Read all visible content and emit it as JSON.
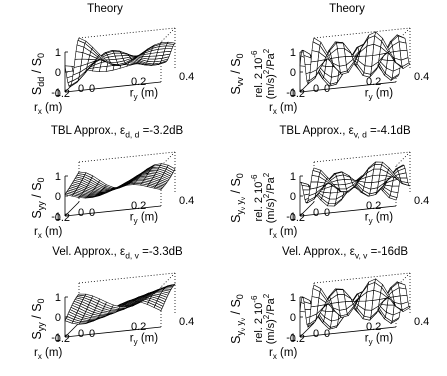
{
  "chart_data": [
    {
      "type": "surface",
      "title": "Theory",
      "zlabel": "S_dd / S_0",
      "xlabel": "r_x (m)",
      "ylabel": "r_y (m)",
      "zlim": [
        -1,
        1
      ],
      "zticks": [
        "1",
        "0",
        "-1"
      ],
      "xticks": [
        "0.2",
        "0"
      ],
      "yticks": [
        "0",
        "0.2",
        "0.4"
      ],
      "surface": "dd"
    },
    {
      "type": "surface",
      "title": "Theory",
      "zlabel": "S_vv / S_0",
      "zlabel2": "rel. 2 10^-6 (m/s)^2/Pa^2",
      "xlabel": "r_x (m)",
      "ylabel": "r_y (m)",
      "zlim": [
        -1,
        1
      ],
      "zticks": [
        "1",
        "0",
        "-1"
      ],
      "xticks": [
        "0.2",
        "0"
      ],
      "yticks": [
        "0",
        "0.2",
        "0.4"
      ],
      "surface": "vv"
    },
    {
      "type": "surface",
      "title": "TBL Approx., ε_d,d =-3.2dB",
      "zlabel": "S_yy / S_0",
      "xlabel": "r_x (m)",
      "ylabel": "r_y (m)",
      "zlim": [
        -1,
        1
      ],
      "zticks": [
        "1",
        "0",
        "-1"
      ],
      "xticks": [
        "0.2",
        "0"
      ],
      "yticks": [
        "0",
        "0.2",
        "0.4"
      ],
      "surface": "tbl_d"
    },
    {
      "type": "surface",
      "title": "TBL Approx., ε_v,d =-4.1dB",
      "zlabel": "S_yv yv / S_0",
      "zlabel2": "rel. 2 10^-6 (m/s)^2/Pa^2",
      "xlabel": "r_x (m)",
      "ylabel": "r_y (m)",
      "zlim": [
        -1,
        1
      ],
      "zticks": [
        "1",
        "0",
        "-1"
      ],
      "xticks": [
        "0.2",
        "0"
      ],
      "yticks": [
        "0",
        "0.2",
        "0.4"
      ],
      "surface": "tbl_v"
    },
    {
      "type": "surface",
      "title": "Vel. Approx., ε_d,v =-3.3dB",
      "zlabel": "S_yy / S_0",
      "xlabel": "r_x (m)",
      "ylabel": "r_y (m)",
      "zlim": [
        -1,
        1
      ],
      "zticks": [
        "1",
        "0",
        "-1"
      ],
      "xticks": [
        "0.2",
        "0"
      ],
      "yticks": [
        "0",
        "0.2",
        "0.4"
      ],
      "surface": "vel_d"
    },
    {
      "type": "surface",
      "title": "Vel. Approx., ε_v,v =-16dB",
      "zlabel": "S_yv yv / S_0",
      "zlabel2": "rel. 2 10^-6 (m/s)^2/Pa^2",
      "xlabel": "r_x (m)",
      "ylabel": "r_y (m)",
      "zlim": [
        -1,
        1
      ],
      "zticks": [
        "1",
        "0",
        "-1"
      ],
      "xticks": [
        "0.2",
        "0"
      ],
      "yticks": [
        "0",
        "0.2",
        "0.4"
      ],
      "surface": "vel_v"
    }
  ],
  "titles": {
    "t1": "Theory",
    "t2": "Theory",
    "t3_pre": "TBL Approx., ε",
    "t3_sub": "d, d",
    "t3_post": " =-3.2dB",
    "t4_pre": "TBL Approx., ε",
    "t4_sub": "v, d",
    "t4_post": " =-4.1dB",
    "t5_pre": "Vel. Approx., ε",
    "t5_sub": "d, v",
    "t5_post": " =-3.3dB",
    "t6_pre": "Vel. Approx., ε",
    "t6_sub": "v, v",
    "t6_post": " =-16dB"
  },
  "labels": {
    "S": "S",
    "S0": "/ S",
    "zero": "0",
    "sub_dd": "dd",
    "sub_vv": "vv",
    "sub_yy": "yy",
    "sub_yvyv": "y",
    "sub_v": "v",
    "rel": "rel. 2 10",
    "rel_exp": "-6",
    "units": "(m/s)",
    "units2": "/Pa",
    "sq": "2",
    "rx": "r",
    "ry": "r",
    "x": "x",
    "y": "y",
    "m": " (m)"
  }
}
